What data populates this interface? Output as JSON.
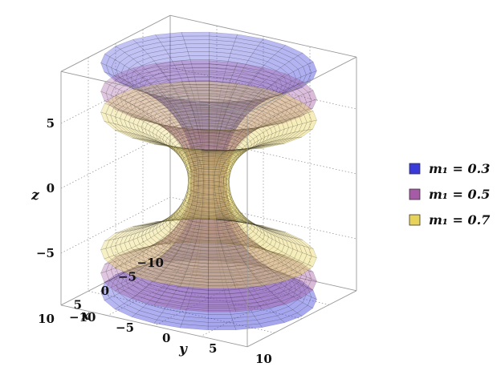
{
  "chart_data": {
    "type": "surface3d",
    "title": "",
    "axes": {
      "x": {
        "label": "x",
        "ticks": [
          "−10",
          "−5",
          "0",
          "5",
          "10"
        ],
        "range": [
          -10,
          10
        ]
      },
      "y": {
        "label": "y",
        "ticks": [
          "−10",
          "−5",
          "0",
          "5",
          "10"
        ],
        "range": [
          -10,
          10
        ]
      },
      "z": {
        "label": "z",
        "ticks": [
          "−5",
          "0",
          "5"
        ],
        "range": [
          -9,
          9
        ]
      }
    },
    "legend": {
      "placement": "right",
      "entries": [
        {
          "label": "m₁ = 0.3",
          "color": "#3a3adb"
        },
        {
          "label": "m₁ = 0.5",
          "color": "#a55ba5"
        },
        {
          "label": "m₁ = 0.7",
          "color": "#e8d35a"
        }
      ]
    },
    "series": [
      {
        "name": "m₁ = 0.3",
        "color": "#3a3adb",
        "throat_radius": 1.3,
        "disc_radius": 10,
        "z_top": 8.8,
        "z_bottom": -8.8
      },
      {
        "name": "m₁ = 0.5",
        "color": "#a55ba5",
        "throat_radius": 1.6,
        "disc_radius": 10,
        "z_top": 6.6,
        "z_bottom": -7.4
      },
      {
        "name": "m₁ = 0.7",
        "color": "#e8d35a",
        "throat_radius": 1.9,
        "disc_radius": 10,
        "z_top": 5.0,
        "z_bottom": -5.6
      }
    ],
    "box": true,
    "grid": true
  }
}
